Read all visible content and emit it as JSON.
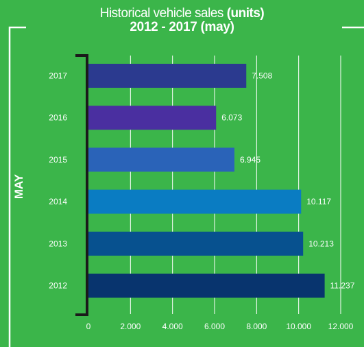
{
  "header": {
    "title_regular": "Historical vehicle sales",
    "title_bold": "(units)",
    "subtitle": "2012 - 2017 (may)"
  },
  "side_label": "MAY",
  "chart_data": {
    "type": "bar",
    "orientation": "horizontal",
    "title": "Historical vehicle sales (units)",
    "subtitle": "2012 - 2017 (may)",
    "ylabel": "MAY",
    "categories": [
      "2017",
      "2016",
      "2015",
      "2014",
      "2013",
      "2012"
    ],
    "values": [
      7508,
      6073,
      6945,
      10117,
      10213,
      11237
    ],
    "value_labels": [
      "7.508",
      "6.073",
      "6.945",
      "10.117",
      "10.213",
      "11.237"
    ],
    "bar_colors": [
      "#2b3a8f",
      "#4a2fa0",
      "#2a63b8",
      "#0a7cc2",
      "#07518f",
      "#08346e"
    ],
    "xlim": [
      0,
      12000
    ],
    "xticks": [
      0,
      2000,
      4000,
      6000,
      8000,
      10000,
      12000
    ],
    "xtick_labels": [
      "0",
      "2.000",
      "4.000",
      "6.000",
      "8.000",
      "10.000",
      "12.000"
    ],
    "grid": true
  }
}
